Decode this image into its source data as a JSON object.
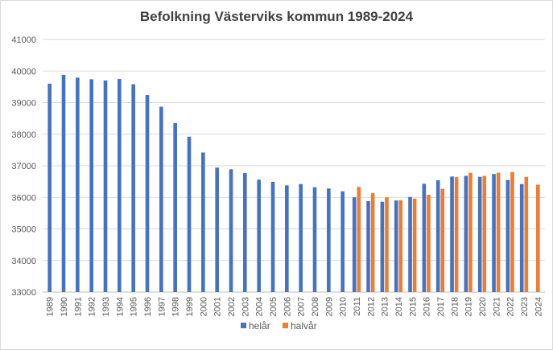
{
  "chart_data": {
    "type": "bar",
    "title": "Befolkning Västerviks kommun 1989-2024",
    "xlabel": "",
    "ylabel": "",
    "ylim": [
      33000,
      41000
    ],
    "yticks": [
      33000,
      34000,
      35000,
      36000,
      37000,
      38000,
      39000,
      40000,
      41000
    ],
    "grid": true,
    "legend_position": "bottom",
    "categories": [
      "1989",
      "1990",
      "1991",
      "1992",
      "1993",
      "1994",
      "1995",
      "1996",
      "1997",
      "1998",
      "1999",
      "2000",
      "2001",
      "2002",
      "2003",
      "2004",
      "2005",
      "2006",
      "2007",
      "2008",
      "2009",
      "2010",
      "2011",
      "2012",
      "2013",
      "2014",
      "2015",
      "2016",
      "2017",
      "2018",
      "2019",
      "2020",
      "2021",
      "2022",
      "2023",
      "2024"
    ],
    "series": [
      {
        "name": "helår",
        "color": "#4472c4",
        "values": [
          39600,
          39880,
          39790,
          39740,
          39700,
          39750,
          39580,
          39240,
          38870,
          38350,
          37920,
          37420,
          36940,
          36890,
          36770,
          36560,
          36490,
          36380,
          36420,
          36320,
          36280,
          36190,
          36000,
          35880,
          35860,
          35900,
          36010,
          36430,
          36540,
          36660,
          36680,
          36650,
          36740,
          36550,
          36420,
          null
        ]
      },
      {
        "name": "halvår",
        "color": "#ed7d31",
        "values": [
          null,
          null,
          null,
          null,
          null,
          null,
          null,
          null,
          null,
          null,
          null,
          null,
          null,
          null,
          null,
          null,
          null,
          null,
          null,
          null,
          null,
          null,
          36330,
          36130,
          36000,
          35910,
          35960,
          36080,
          36270,
          36640,
          36780,
          36680,
          36780,
          36800,
          36650,
          36400
        ]
      }
    ]
  }
}
